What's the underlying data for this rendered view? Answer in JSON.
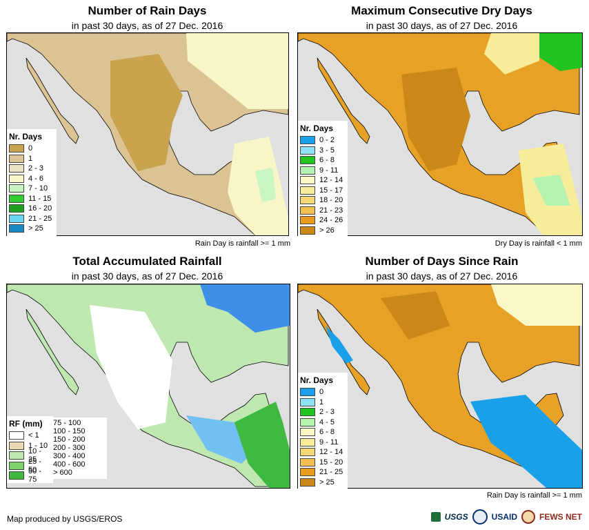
{
  "panels": [
    {
      "title": "Number of Rain Days",
      "subtitle": "in past 30 days, as of 27 Dec. 2016",
      "note": "Rain Day is rainfall >= 1 mm",
      "land_color": "#dcc9a0",
      "legend": {
        "title": "Nr. Days",
        "items": [
          {
            "label": "0",
            "color": "#c9a34e"
          },
          {
            "label": "1",
            "color": "#dcc394"
          },
          {
            "label": "2 - 3",
            "color": "#ece0c4"
          },
          {
            "label": "4 - 6",
            "color": "#f8f6c8"
          },
          {
            "label": "7 - 10",
            "color": "#c8f5c0"
          },
          {
            "label": "11 - 15",
            "color": "#33cc33"
          },
          {
            "label": "16 - 20",
            "color": "#1fa01f"
          },
          {
            "label": "21 - 25",
            "color": "#6ad6f0"
          },
          {
            "label": "> 25",
            "color": "#1a8ac4"
          }
        ]
      }
    },
    {
      "title": "Maximum Consecutive Dry Days",
      "subtitle": "in past 30 days, as of 27 Dec. 2016",
      "note": "Dry Day is rainfall < 1 mm",
      "land_color": "#e7a126",
      "legend": {
        "title": "Nr. Days",
        "items": [
          {
            "label": "0 - 2",
            "color": "#1aa0e8"
          },
          {
            "label": "3 - 5",
            "color": "#8fe2f5"
          },
          {
            "label": "6 - 8",
            "color": "#22c422"
          },
          {
            "label": "9 - 11",
            "color": "#b6f2b0"
          },
          {
            "label": "12 - 14",
            "color": "#fbf8c8"
          },
          {
            "label": "15 - 17",
            "color": "#f6ec9a"
          },
          {
            "label": "18 - 20",
            "color": "#f5d776"
          },
          {
            "label": "21 - 23",
            "color": "#f2c050"
          },
          {
            "label": "24 - 26",
            "color": "#e89a1a"
          },
          {
            "label": "> 26",
            "color": "#c98818"
          }
        ]
      }
    },
    {
      "title": "Total Accumulated Rainfall",
      "subtitle": "in past 30 days, as of 27 Dec. 2016",
      "note": "",
      "land_color": "#e9ddb8",
      "legend": {
        "title": "RF (mm)",
        "items": [
          {
            "label": "< 1",
            "color": "#ffffff"
          },
          {
            "label": "1 - 10",
            "color": "#ead9b0"
          },
          {
            "label": "10 - 25",
            "color": "#bfe8b0"
          },
          {
            "label": "25 - 50",
            "color": "#7dd36a"
          },
          {
            "label": "50 - 75",
            "color": "#3eb83e"
          }
        ],
        "items2": [
          {
            "label": "75 - 100",
            "color": "#a8e4f8"
          },
          {
            "label": "100 - 150",
            "color": "#72bff2"
          },
          {
            "label": "150 - 200",
            "color": "#3f8fe8"
          },
          {
            "label": "200 - 300",
            "color": "#1a5fd0"
          },
          {
            "label": "300 - 400",
            "color": "#f8e08a"
          },
          {
            "label": "400 - 600",
            "color": "#f29a1a"
          },
          {
            "label": "> 600",
            "color": "#e8301a"
          }
        ]
      }
    },
    {
      "title": "Number of Days Since Rain",
      "subtitle": "in past 30 days, as of 27 Dec. 2016",
      "note": "Rain Day is rainfall >= 1 mm",
      "land_color": "#e7a126",
      "legend": {
        "title": "Nr. Days",
        "items": [
          {
            "label": "0",
            "color": "#1aa0e8"
          },
          {
            "label": "1",
            "color": "#8fe2f5"
          },
          {
            "label": "2 - 3",
            "color": "#22c422"
          },
          {
            "label": "4 - 5",
            "color": "#b6f2b0"
          },
          {
            "label": "6 - 8",
            "color": "#fbf8c8"
          },
          {
            "label": "9 - 11",
            "color": "#f6ec9a"
          },
          {
            "label": "12 - 14",
            "color": "#f5d776"
          },
          {
            "label": "15 - 20",
            "color": "#f2c050"
          },
          {
            "label": "21 - 25",
            "color": "#e89a1a"
          },
          {
            "label": "> 25",
            "color": "#c98818"
          }
        ]
      }
    }
  ],
  "footer": "Map produced by USGS/EROS",
  "logos": {
    "usgs": "USGS",
    "usaid": "USAID",
    "fews": "FEWS NET"
  },
  "colors": {
    "ocean": "#e0e0e0",
    "border": "#000000"
  }
}
